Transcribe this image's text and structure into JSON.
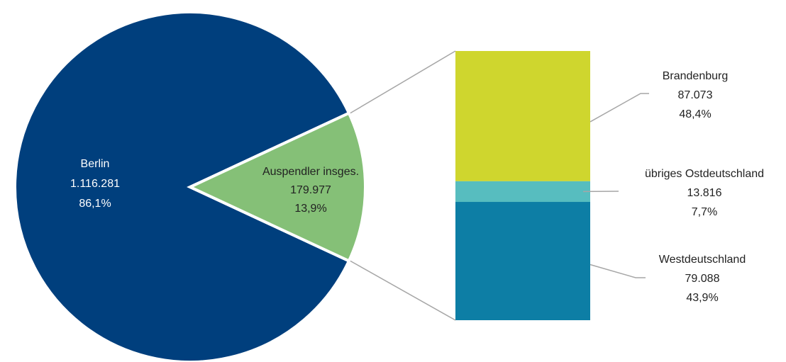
{
  "chart_data": {
    "type": "pie",
    "title": "",
    "pie": {
      "slices": [
        {
          "name": "Berlin",
          "value_text": "1.116.281",
          "value": 1116281,
          "percent_text": "86,1%",
          "percent": 86.1,
          "color": "#003f7d"
        },
        {
          "name": "Auspendler insges.",
          "value_text": "179.977",
          "value": 179977,
          "percent_text": "13,9%",
          "percent": 13.9,
          "color": "#85c077"
        }
      ]
    },
    "breakdown": {
      "type": "stacked-bar",
      "segments": [
        {
          "name": "Brandenburg",
          "value_text": "87.073",
          "value": 87073,
          "percent_text": "48,4%",
          "percent": 48.4,
          "color": "#cfd62e"
        },
        {
          "name": "übriges Ostdeutschland",
          "value_text": "13.816",
          "value": 13816,
          "percent_text": "7,7%",
          "percent": 7.7,
          "color": "#57bdbf"
        },
        {
          "name": "Westdeutschland",
          "value_text": "79.088",
          "value": 79088,
          "percent_text": "43,9%",
          "percent": 43.9,
          "color": "#0d7ea5"
        }
      ]
    },
    "label_color_inside": "#ffffff",
    "label_color_outside": "#222222",
    "connector_color": "#a6a6a6"
  }
}
